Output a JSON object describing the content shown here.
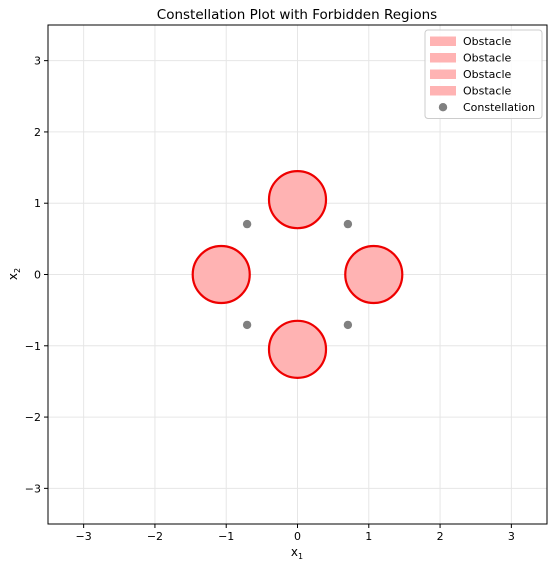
{
  "chart_data": {
    "type": "scatter",
    "title": "Constellation Plot with Forbidden Regions",
    "xlabel_main": "x",
    "xlabel_sub": "1",
    "ylabel_main": "x",
    "ylabel_sub": "2",
    "xlim": [
      -3.5,
      3.5
    ],
    "ylim": [
      -3.5,
      3.5
    ],
    "xticks": [
      -3,
      -2,
      -1,
      0,
      1,
      2,
      3
    ],
    "yticks": [
      -3,
      -2,
      -1,
      0,
      1,
      2,
      3
    ],
    "xtick_labels": [
      "−3",
      "−2",
      "−1",
      "0",
      "1",
      "2",
      "3"
    ],
    "ytick_labels": [
      "−3",
      "−2",
      "−1",
      "0",
      "1",
      "2",
      "3"
    ],
    "grid": true,
    "legend_position": "top-right",
    "obstacles": [
      {
        "label": "Obstacle",
        "cx": 0,
        "cy": 1.05,
        "r": 0.4
      },
      {
        "label": "Obstacle",
        "cx": 0,
        "cy": -1.05,
        "r": 0.4
      },
      {
        "label": "Obstacle",
        "cx": 1.07,
        "cy": 0,
        "r": 0.4
      },
      {
        "label": "Obstacle",
        "cx": -1.07,
        "cy": 0,
        "r": 0.4
      }
    ],
    "constellation": {
      "label": "Constellation",
      "points": [
        {
          "x": 0.707,
          "y": 0.707
        },
        {
          "x": -0.707,
          "y": 0.707
        },
        {
          "x": -0.707,
          "y": -0.707
        },
        {
          "x": 0.707,
          "y": -0.707
        }
      ]
    },
    "colors": {
      "obstacle_fill": "#ffb3b3",
      "obstacle_edge": "#ee0000",
      "constellation": "#808080",
      "grid": "#e6e6e6"
    }
  }
}
